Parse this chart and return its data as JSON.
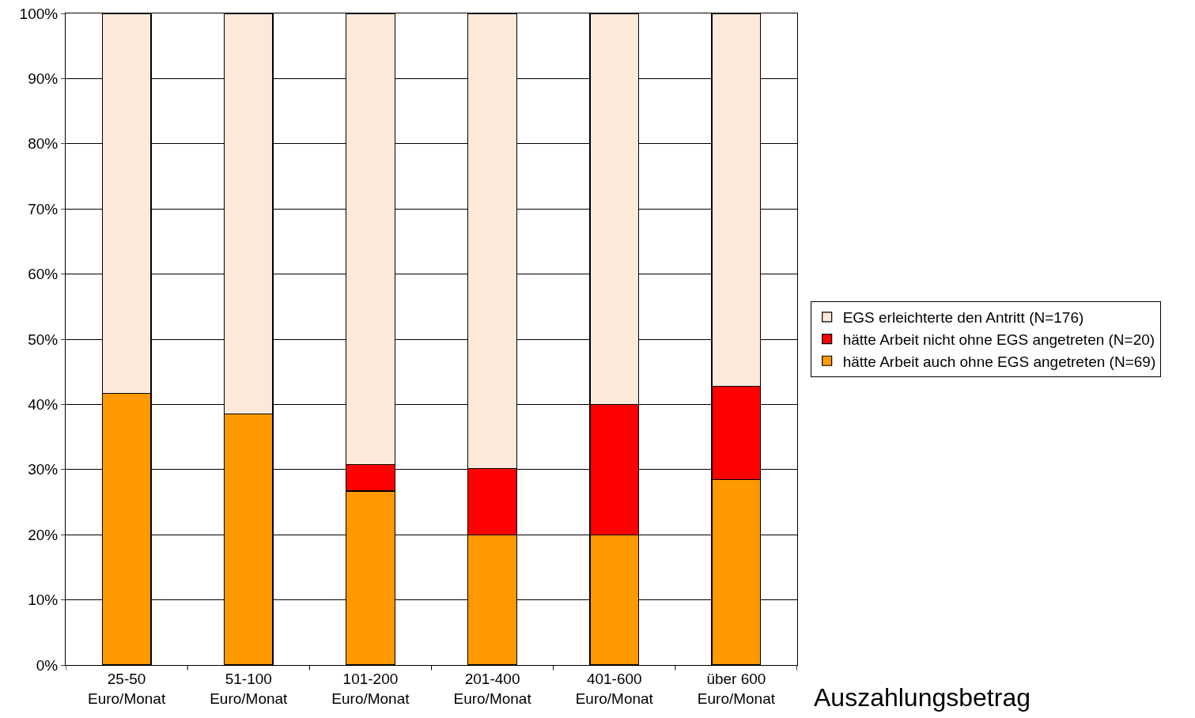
{
  "chart_data": {
    "type": "bar",
    "stacked": true,
    "xlabel": "Auszahlungsbetrag",
    "categories": [
      "25-50\nEuro/Monat",
      "51-100\nEuro/Monat",
      "101-200\nEuro/Monat",
      "201-400\nEuro/Monat",
      "401-600\nEuro/Monat",
      "über 600\nEuro/Monat"
    ],
    "series": [
      {
        "name": "hätte Arbeit auch ohne EGS angetreten (N=69)",
        "color": "#ff9900",
        "values": [
          41.7,
          38.5,
          26.7,
          20,
          20,
          28.5
        ]
      },
      {
        "name": "hätte Arbeit nicht ohne EGS angetreten (N=20)",
        "color": "#ff0000",
        "values": [
          0,
          0,
          4.1,
          10.2,
          20,
          14.3
        ]
      },
      {
        "name": "EGS erleichterte den Antritt (N=176)",
        "color": "#fde9d9",
        "values": [
          58.3,
          61.5,
          69.2,
          69.8,
          60,
          57.2
        ]
      }
    ],
    "ylim": [
      0,
      100
    ],
    "yticks": [
      {
        "value": 0,
        "label": "0%"
      },
      {
        "value": 10,
        "label": "10%"
      },
      {
        "value": 20,
        "label": "20%"
      },
      {
        "value": 30,
        "label": "30%"
      },
      {
        "value": 40,
        "label": "40%"
      },
      {
        "value": 50,
        "label": "50%"
      },
      {
        "value": 60,
        "label": "60%"
      },
      {
        "value": 70,
        "label": "70%"
      },
      {
        "value": 80,
        "label": "80%"
      },
      {
        "value": 90,
        "label": "90%"
      },
      {
        "value": 100,
        "label": "100%"
      }
    ],
    "grid": "y",
    "legend": "right"
  }
}
